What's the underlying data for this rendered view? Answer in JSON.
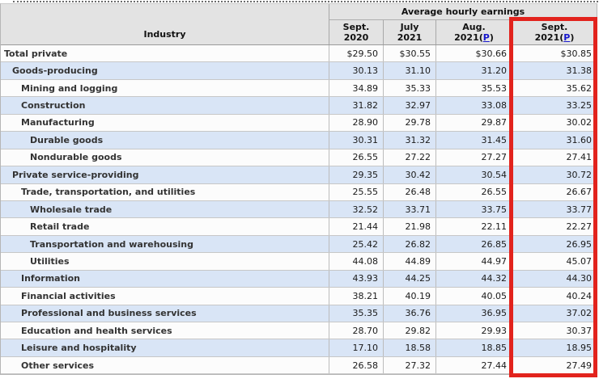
{
  "table": {
    "industry_header": "Industry",
    "group_header": "Average hourly earnings",
    "columns": [
      {
        "line1": "Sept.",
        "line2": "2020"
      },
      {
        "line1": "July",
        "line2": "2021"
      },
      {
        "line1": "Aug.",
        "line2_open": "2021(",
        "prelim": "P",
        "line2_close": ")"
      },
      {
        "line1": "Sept.",
        "line2_open": "2021(",
        "prelim": "P",
        "line2_close": ")"
      }
    ],
    "rows": [
      {
        "label": "Total private",
        "level": 0,
        "values": [
          "$29.50",
          "$30.55",
          "$30.66",
          "$30.85"
        ]
      },
      {
        "label": "Goods-producing",
        "level": 1,
        "values": [
          "30.13",
          "31.10",
          "31.20",
          "31.38"
        ]
      },
      {
        "label": "Mining and logging",
        "level": 2,
        "values": [
          "34.89",
          "35.33",
          "35.53",
          "35.62"
        ]
      },
      {
        "label": "Construction",
        "level": 2,
        "values": [
          "31.82",
          "32.97",
          "33.08",
          "33.25"
        ]
      },
      {
        "label": "Manufacturing",
        "level": 2,
        "values": [
          "28.90",
          "29.78",
          "29.87",
          "30.02"
        ]
      },
      {
        "label": "Durable goods",
        "level": 3,
        "values": [
          "30.31",
          "31.32",
          "31.45",
          "31.60"
        ]
      },
      {
        "label": "Nondurable goods",
        "level": 3,
        "values": [
          "26.55",
          "27.22",
          "27.27",
          "27.41"
        ]
      },
      {
        "label": "Private service-providing",
        "level": 1,
        "values": [
          "29.35",
          "30.42",
          "30.54",
          "30.72"
        ]
      },
      {
        "label": "Trade, transportation, and utilities",
        "level": 2,
        "values": [
          "25.55",
          "26.48",
          "26.55",
          "26.67"
        ]
      },
      {
        "label": "Wholesale trade",
        "level": 3,
        "values": [
          "32.52",
          "33.71",
          "33.75",
          "33.77"
        ]
      },
      {
        "label": "Retail trade",
        "level": 3,
        "values": [
          "21.44",
          "21.98",
          "22.11",
          "22.27"
        ]
      },
      {
        "label": "Transportation and warehousing",
        "level": 3,
        "values": [
          "25.42",
          "26.82",
          "26.85",
          "26.95"
        ]
      },
      {
        "label": "Utilities",
        "level": 3,
        "values": [
          "44.08",
          "44.89",
          "44.97",
          "45.07"
        ]
      },
      {
        "label": "Information",
        "level": 2,
        "values": [
          "43.93",
          "44.25",
          "44.32",
          "44.30"
        ]
      },
      {
        "label": "Financial activities",
        "level": 2,
        "values": [
          "38.21",
          "40.19",
          "40.05",
          "40.24"
        ]
      },
      {
        "label": "Professional and business services",
        "level": 2,
        "values": [
          "35.35",
          "36.76",
          "36.95",
          "37.02"
        ]
      },
      {
        "label": "Education and health services",
        "level": 2,
        "values": [
          "28.70",
          "29.82",
          "29.93",
          "30.37"
        ]
      },
      {
        "label": "Leisure and hospitality",
        "level": 2,
        "values": [
          "17.10",
          "18.58",
          "18.85",
          "18.95"
        ]
      },
      {
        "label": "Other services",
        "level": 2,
        "values": [
          "26.58",
          "27.32",
          "27.44",
          "27.49"
        ]
      }
    ],
    "highlight_color": "#e2231d",
    "alt_row_color": "#d9e5f6",
    "header_bg_color": "#e3e3e3"
  }
}
